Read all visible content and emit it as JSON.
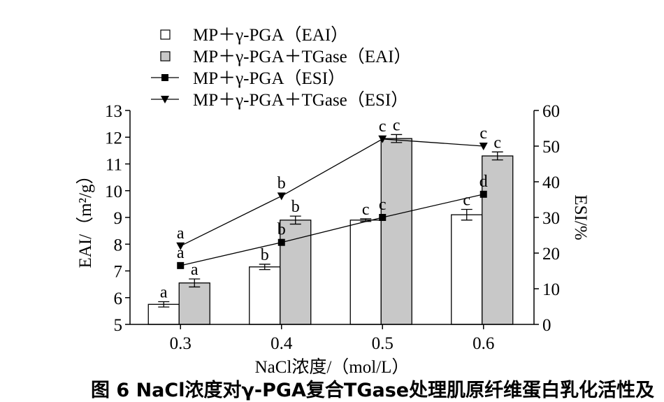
{
  "chart_data": {
    "type": "bar",
    "categories": [
      "0.3",
      "0.4",
      "0.5",
      "0.6"
    ],
    "xlabel": "NaCl浓度/（mol/L）",
    "ylabel_left": "EAI/（m²/g）",
    "ylabel_right": "ESI/%",
    "ylim_left": [
      5,
      13
    ],
    "ylim_right": [
      0,
      60
    ],
    "yticks_left": [
      5,
      6,
      7,
      8,
      9,
      10,
      11,
      12,
      13
    ],
    "yticks_right": [
      0,
      10,
      20,
      30,
      40,
      50,
      60
    ],
    "legend_position": "top-left",
    "series": [
      {
        "name": "MP＋γ-PGA（EAI）",
        "kind": "bar",
        "axis": "left",
        "color": "#ffffff",
        "values": [
          5.75,
          7.15,
          8.9,
          9.1
        ],
        "errors": [
          0.1,
          0.1,
          0.05,
          0.2
        ],
        "labels": [
          "a",
          "b",
          "c",
          "c"
        ]
      },
      {
        "name": "MP＋γ-PGA＋TGase（EAI）",
        "kind": "bar",
        "axis": "left",
        "color": "#c8c8c8",
        "values": [
          6.55,
          8.9,
          11.95,
          11.3
        ],
        "errors": [
          0.15,
          0.15,
          0.15,
          0.15
        ],
        "labels": [
          "a",
          "b",
          "c",
          "c"
        ]
      },
      {
        "name": "MP＋γ-PGA（ESI）",
        "kind": "line",
        "axis": "right",
        "marker": "square",
        "values": [
          16.5,
          23,
          30,
          36.5
        ],
        "labels": [
          "a",
          "b",
          "c",
          "d"
        ]
      },
      {
        "name": "MP＋γ-PGA＋TGase（ESI）",
        "kind": "line",
        "axis": "right",
        "marker": "triangle-down",
        "values": [
          22,
          36,
          52,
          50
        ],
        "labels": [
          "a",
          "b",
          "c",
          "c"
        ]
      }
    ]
  },
  "caption": "图 6   NaCl浓度对γ-PGA复合TGase处理肌原纤维蛋白乳化活性及"
}
